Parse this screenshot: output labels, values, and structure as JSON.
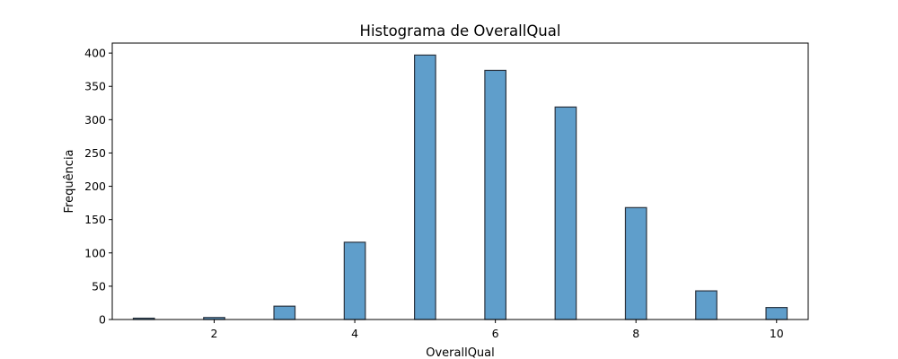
{
  "chart_data": {
    "type": "bar",
    "title": "Histograma de OverallQual",
    "xlabel": "OverallQual",
    "ylabel": "Frequência",
    "xlim": [
      0.55,
      10.45
    ],
    "ylim": [
      0,
      415
    ],
    "x_ticks": [
      2,
      4,
      6,
      8,
      10
    ],
    "y_ticks": [
      0,
      50,
      100,
      150,
      200,
      250,
      300,
      350,
      400
    ],
    "bin_width": 0.3,
    "bars": [
      {
        "x": 1,
        "value": 2
      },
      {
        "x": 2,
        "value": 3
      },
      {
        "x": 3,
        "value": 20
      },
      {
        "x": 4,
        "value": 116
      },
      {
        "x": 5,
        "value": 397
      },
      {
        "x": 6,
        "value": 374
      },
      {
        "x": 7,
        "value": 319
      },
      {
        "x": 8,
        "value": 168
      },
      {
        "x": 9,
        "value": 43
      },
      {
        "x": 10,
        "value": 18
      }
    ],
    "grid": false,
    "legend": "none",
    "colors": {
      "bar_fill": "#5f9ecb",
      "bar_edge": "#2b3440",
      "axis": "#000000"
    }
  }
}
